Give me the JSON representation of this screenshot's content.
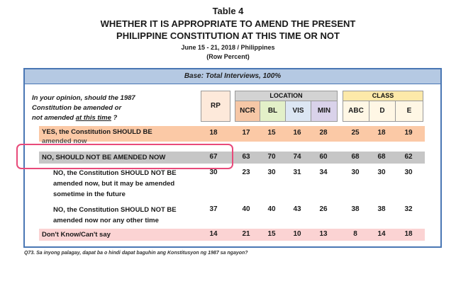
{
  "header": {
    "table_label": "Table 4",
    "title_line1": "WHETHER IT IS APPROPRIATE TO AMEND THE PRESENT",
    "title_line2": "PHILIPPINE CONSTITUTION AT THIS TIME OR NOT",
    "date": "June 15 - 21, 2018 / Philippines",
    "note": "(Row Percent)"
  },
  "base": "Base: Total Interviews, 100%",
  "question": {
    "line1": "In your opinion, should the 1987",
    "line2": "Constitution be amended or",
    "line3a": "not amended ",
    "line3b": "at this time",
    "line3c": " ?"
  },
  "columns": {
    "rp": "RP",
    "location_group": "LOCATION",
    "class_group": "CLASS",
    "location": [
      "NCR",
      "BL",
      "VIS",
      "MIN"
    ],
    "class": [
      "ABC",
      "D",
      "E"
    ]
  },
  "rows": [
    {
      "label1": "YES, the Constitution SHOULD BE",
      "label2": "amended now",
      "label3": "",
      "values": [
        "18",
        "17",
        "15",
        "16",
        "28",
        "25",
        "18",
        "19"
      ]
    },
    {
      "label1": "NO, SHOULD NOT BE AMENDED NOW",
      "label2": "",
      "label3": "",
      "values": [
        "67",
        "63",
        "70",
        "74",
        "60",
        "68",
        "68",
        "62"
      ]
    },
    {
      "label1": "NO, the Constitution SHOULD NOT BE",
      "label2": "amended now, but it may be amended",
      "label3": "sometime in the future",
      "values": [
        "30",
        "23",
        "30",
        "31",
        "34",
        "30",
        "30",
        "30"
      ]
    },
    {
      "label1": "NO, the Constitution SHOULD NOT BE",
      "label2": "amended now nor any other time",
      "label3": "",
      "values": [
        "37",
        "40",
        "40",
        "43",
        "26",
        "38",
        "38",
        "32"
      ]
    },
    {
      "label1": "Don't Know/Can't say",
      "label2": "",
      "label3": "",
      "values": [
        "14",
        "21",
        "15",
        "10",
        "13",
        "8",
        "14",
        "18"
      ]
    }
  ],
  "footnote": "Q73. Sa inyong palagay, dapat ba o hindi dapat baguhin ang Konstitusyon ng 1987 sa ngayon?",
  "colors": {
    "yes_row": "#fbc9a6",
    "no_row": "#c6c6c6",
    "dk_row": "#fbd3d3",
    "base_band": "#b5c9e3",
    "frame": "#4a77b4",
    "callout": "#e84a7a"
  }
}
